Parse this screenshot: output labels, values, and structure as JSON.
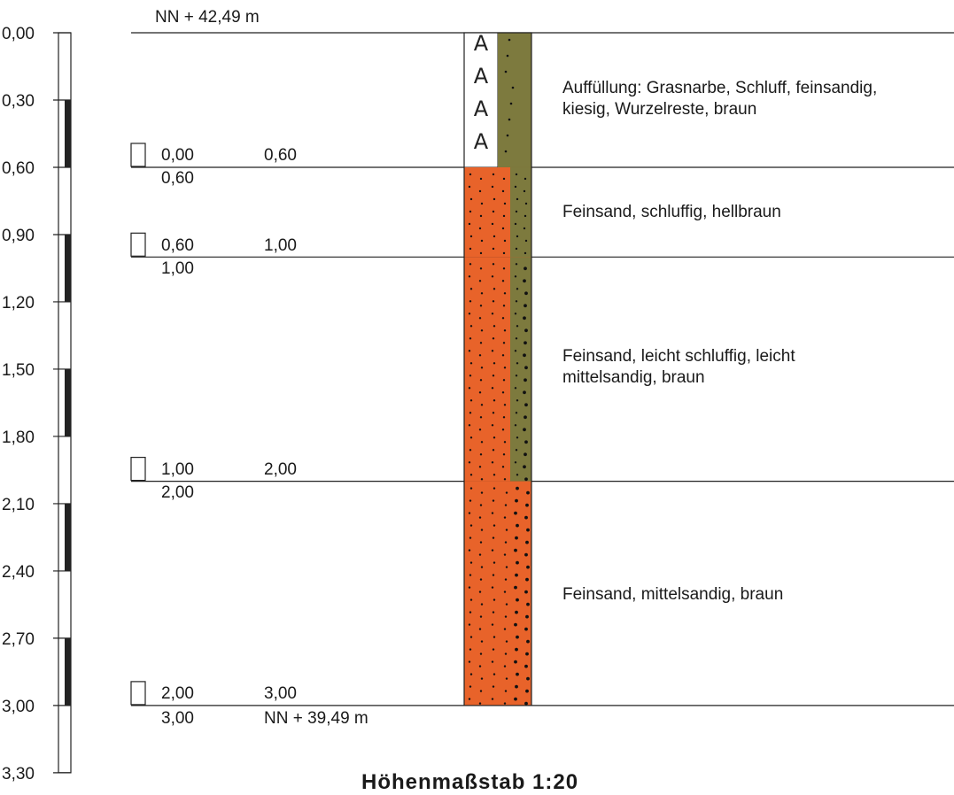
{
  "depth_scale": {
    "ticks": [
      "0,00",
      "0,30",
      "0,60",
      "0,90",
      "1,20",
      "1,50",
      "1,80",
      "2,10",
      "2,40",
      "2,70",
      "3,00",
      "3,30"
    ]
  },
  "header": {
    "top_elevation": "NN + 42,49 m"
  },
  "footer": {
    "bottom_elevation": "NN + 39,49 m",
    "scale_title": "Höhenmaßstab 1:20"
  },
  "samples": [
    {
      "from": "0,00",
      "to": "0,60"
    },
    {
      "from": "0,60",
      "to": "1,00"
    },
    {
      "from": "1,00",
      "to": "2,00"
    },
    {
      "from": "2,00",
      "to": "3,00"
    }
  ],
  "layers": [
    {
      "top_label": "",
      "bottom_depth": 0.6,
      "top_depth": 0.0,
      "description": "Auffüllung: Grasnarbe, Schluff, feinsandig, kiesig, Wurzelreste, braun",
      "fill": "#7a7a3a",
      "left_pattern": "A"
    },
    {
      "top_label": "0,60",
      "top_depth": 0.6,
      "bottom_depth": 1.0,
      "description": "Feinsand, schluffig, hellbraun",
      "fill": "#e8632a"
    },
    {
      "top_label": "1,00",
      "top_depth": 1.0,
      "bottom_depth": 2.0,
      "description": "Feinsand, leicht schluffig, leicht mittelsandig, braun",
      "fill": "#e8632a"
    },
    {
      "top_label": "2,00",
      "top_depth": 2.0,
      "bottom_depth": 3.0,
      "description": "Feinsand, mittelsandig, braun",
      "fill": "#e8632a"
    }
  ],
  "end_depth_label": "3,00",
  "colors": {
    "fill_orange": "#e8632a",
    "fill_olive": "#7d7a3e",
    "scale_black": "#222222"
  }
}
